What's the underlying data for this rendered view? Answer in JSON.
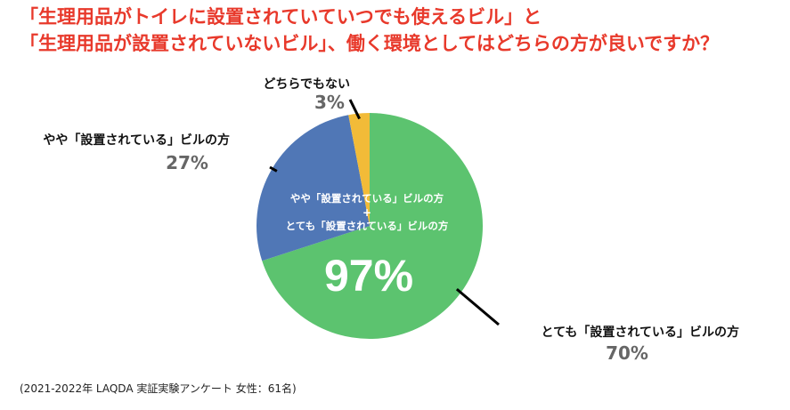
{
  "title": {
    "line1": "「生理用品がトイレに設置されていていつでも使えるビル」と",
    "line2": "「生理用品が設置されていないビル」、働く環境としてはどちらの方が良いですか？"
  },
  "source": "(2021-2022年 LAQDA 実証実験アンケート 女性：61名)",
  "chart_data": {
    "type": "pie",
    "slices": [
      {
        "label": "とても「設置されている」ビルの方",
        "value": 70,
        "value_label": "70%",
        "color": "#5cc36f"
      },
      {
        "label": "やや「設置されている」ビルの方",
        "value": 27,
        "value_label": "27%",
        "color": "#5077b6"
      },
      {
        "label": "どちらでもない",
        "value": 3,
        "value_label": "3%",
        "color": "#f2bb38"
      }
    ],
    "combined": {
      "line1": "やや「設置されている」ビルの方",
      "plus": "+",
      "line2": "とても「設置されている」ビルの方",
      "value_label": "97%"
    }
  }
}
